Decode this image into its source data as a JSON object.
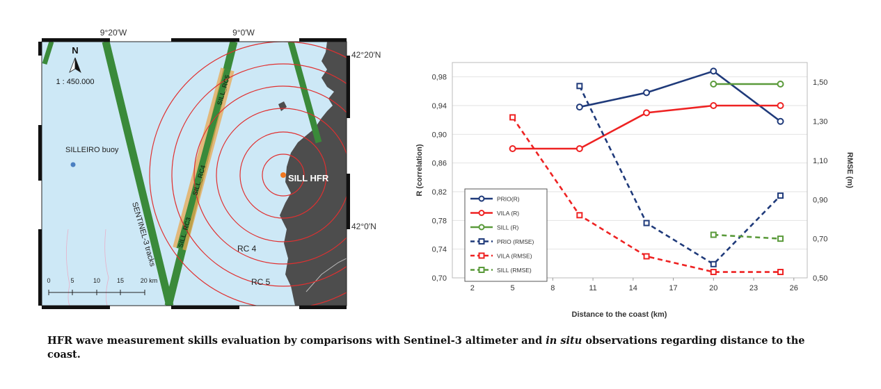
{
  "map": {
    "top_lon_labels": [
      "9°20′W",
      "9°0′W"
    ],
    "right_lat_labels": [
      "42°20′N",
      "42°0′N"
    ],
    "north_label": "N",
    "scale_ratio": "1 : 450.000",
    "buoy_label": "SILLEIRO buoy",
    "hfr_label": "SILL HFR",
    "tracks_label": "SENTINEL-3 tracks",
    "rc_labels": [
      "SILL_RC3",
      "SILL_RC4",
      "SILL_RC5"
    ],
    "ring_labels": [
      "RC 4",
      "RC 5"
    ],
    "scalebar_ticks": [
      "0",
      "5",
      "10",
      "15",
      "20 km"
    ],
    "colors": {
      "sea": "#cde8f6",
      "land": "#4d4d4d",
      "track": "#3a8a3a",
      "ring": "#e03030",
      "rc_band": "#e8a850",
      "buoy": "#4a7fc1",
      "hfr": "#f07820"
    }
  },
  "chart_data": {
    "type": "line",
    "xlabel": "Distance to the coast (km)",
    "ylabel": "R (correlation)",
    "y2label": "RMSE (m)",
    "xticks": [
      2,
      5,
      8,
      11,
      14,
      17,
      20,
      23,
      26
    ],
    "xlim": [
      0.5,
      27
    ],
    "ylim": [
      0.7,
      1.0
    ],
    "yticks": [
      "0,70",
      "0,74",
      "0,78",
      "0,82",
      "0,86",
      "0,90",
      "0,94",
      "0,98"
    ],
    "y2lim": [
      0.5,
      1.6
    ],
    "y2ticks": [
      "0,50",
      "0,70",
      "0,90",
      "1,10",
      "1,30",
      "1,50"
    ],
    "grid": "horizontal",
    "legend_position": "bottom-left",
    "series": [
      {
        "name": "PRIO(R)",
        "axis": "left",
        "style": "solid",
        "marker": "circle",
        "color": "#1f3a7a",
        "x": [
          10,
          15,
          20,
          25
        ],
        "y": [
          0.938,
          0.958,
          0.988,
          0.918
        ]
      },
      {
        "name": "VILA (R)",
        "axis": "left",
        "style": "solid",
        "marker": "circle",
        "color": "#ee2222",
        "x": [
          5,
          10,
          15,
          20,
          25
        ],
        "y": [
          0.88,
          0.88,
          0.93,
          0.94,
          0.94
        ]
      },
      {
        "name": "SILL (R)",
        "axis": "left",
        "style": "solid",
        "marker": "circle",
        "color": "#5a9a3a",
        "x": [
          20,
          25
        ],
        "y": [
          0.97,
          0.97
        ]
      },
      {
        "name": "PRIO (RMSE)",
        "axis": "right",
        "style": "dashed",
        "marker": "square",
        "color": "#1f3a7a",
        "x": [
          10,
          15,
          20,
          25
        ],
        "y": [
          1.48,
          0.78,
          0.57,
          0.92
        ]
      },
      {
        "name": "VILA (RMSE)",
        "axis": "right",
        "style": "dashed",
        "marker": "square",
        "color": "#ee2222",
        "x": [
          5,
          10,
          15,
          20,
          25
        ],
        "y": [
          1.32,
          0.82,
          0.61,
          0.53,
          0.53
        ]
      },
      {
        "name": "SILL (RMSE)",
        "axis": "right",
        "style": "dashed",
        "marker": "square",
        "color": "#5a9a3a",
        "x": [
          20,
          25
        ],
        "y": [
          0.72,
          0.7
        ]
      }
    ]
  },
  "caption": {
    "before": "HFR wave measurement skills evaluation by comparisons with Sentinel-3 altimeter and ",
    "italic": "in situ",
    "after": " observations regarding distance to the coast."
  }
}
